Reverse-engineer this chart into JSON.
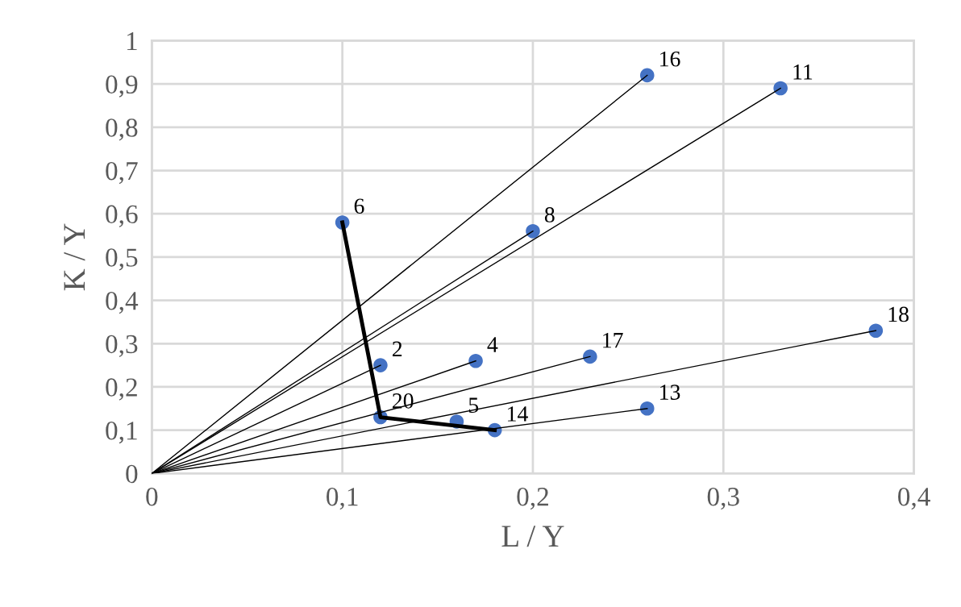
{
  "chart_data": {
    "type": "scatter",
    "xlabel": "L / Y",
    "ylabel": "K / Y",
    "xlim": [
      0,
      0.4
    ],
    "ylim": [
      0,
      1
    ],
    "xticks": [
      0,
      {
        "value": 0.1,
        "label": "0,1"
      },
      {
        "value": 0.2,
        "label": "0,2"
      },
      {
        "value": 0.3,
        "label": "0,3"
      },
      {
        "value": 0.4,
        "label": "0,4"
      }
    ],
    "yticks": [
      0,
      {
        "value": 0.1,
        "label": "0,1"
      },
      {
        "value": 0.2,
        "label": "0,2"
      },
      {
        "value": 0.3,
        "label": "0,3"
      },
      {
        "value": 0.4,
        "label": "0,4"
      },
      {
        "value": 0.5,
        "label": "0,5"
      },
      {
        "value": 0.6,
        "label": "0,6"
      },
      {
        "value": 0.7,
        "label": "0,7"
      },
      {
        "value": 0.8,
        "label": "0,8"
      },
      {
        "value": 0.9,
        "label": "0,9"
      },
      1
    ],
    "grid": true,
    "legend": false,
    "series": [
      {
        "type": "line",
        "color": "#000000",
        "x": [
          0,
          0.26
        ],
        "values": [
          0,
          0.92
        ]
      },
      {
        "type": "line",
        "color": "#000000",
        "x": [
          0,
          0.33
        ],
        "values": [
          0,
          0.89
        ]
      },
      {
        "type": "line",
        "color": "#000000",
        "x": [
          0,
          0.2
        ],
        "values": [
          0,
          0.56
        ]
      },
      {
        "type": "line",
        "color": "#000000",
        "x": [
          0,
          0.12
        ],
        "values": [
          0,
          0.25
        ]
      },
      {
        "type": "line",
        "color": "#000000",
        "x": [
          0,
          0.17
        ],
        "values": [
          0,
          0.26
        ]
      },
      {
        "type": "line",
        "color": "#000000",
        "x": [
          0,
          0.23
        ],
        "values": [
          0,
          0.27
        ]
      },
      {
        "type": "line",
        "color": "#000000",
        "x": [
          0,
          0.38
        ],
        "values": [
          0,
          0.33
        ]
      },
      {
        "type": "line",
        "color": "#000000",
        "x": [
          0,
          0.26
        ],
        "values": [
          0,
          0.15
        ]
      },
      {
        "type": "line",
        "color": "#000000",
        "x": [
          0.1,
          0.12,
          0.18
        ],
        "values": [
          0.58,
          0.13,
          0.1
        ]
      },
      {
        "color": "#4472c4",
        "marker": "circle",
        "x": [
          0.26,
          0.33,
          0.2,
          0.1,
          0.12,
          0.17,
          0.23,
          0.38,
          0.26,
          0.12,
          0.16,
          0.18
        ],
        "values": [
          0.92,
          0.89,
          0.56,
          0.58,
          0.25,
          0.26,
          0.27,
          0.33,
          0.15,
          0.13,
          0.12,
          0.1
        ]
      }
    ],
    "annotations": [
      {
        "text": "16",
        "x": 0.26,
        "y": 0.92
      },
      {
        "text": "11",
        "x": 0.33,
        "y": 0.89
      },
      {
        "text": "8",
        "x": 0.2,
        "y": 0.56
      },
      {
        "text": "6",
        "x": 0.1,
        "y": 0.58
      },
      {
        "text": "2",
        "x": 0.12,
        "y": 0.25
      },
      {
        "text": "4",
        "x": 0.17,
        "y": 0.26
      },
      {
        "text": "17",
        "x": 0.23,
        "y": 0.27
      },
      {
        "text": "18",
        "x": 0.38,
        "y": 0.33
      },
      {
        "text": "13",
        "x": 0.26,
        "y": 0.15
      },
      {
        "text": "20",
        "x": 0.12,
        "y": 0.13
      },
      {
        "text": "5",
        "x": 0.16,
        "y": 0.12
      },
      {
        "text": "14",
        "x": 0.18,
        "y": 0.1
      }
    ]
  }
}
